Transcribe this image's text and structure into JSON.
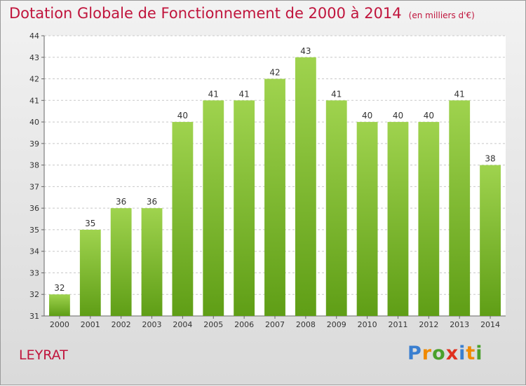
{
  "title": "Dotation Globale de Fonctionnement de 2000 à 2014",
  "unit": "(en milliers d'€)",
  "commune": "LEYRAT",
  "logo": {
    "text": "Proxiti",
    "letters": [
      {
        "ch": "P",
        "color": "#3a7fd0"
      },
      {
        "ch": "r",
        "color": "#f08a00"
      },
      {
        "ch": "o",
        "color": "#4aa02c"
      },
      {
        "ch": "x",
        "color": "#e0301e"
      },
      {
        "ch": "i",
        "color": "#3a7fd0"
      },
      {
        "ch": "t",
        "color": "#f08a00"
      },
      {
        "ch": "i",
        "color": "#4aa02c"
      }
    ]
  },
  "colors": {
    "accent": "#c0143c",
    "bar_top": "#9fd34e",
    "bar_bottom": "#5f9e16",
    "grid": "#c8c8c8",
    "axis_text": "#333333"
  },
  "chart_data": {
    "type": "bar",
    "categories": [
      "2000",
      "2001",
      "2002",
      "2003",
      "2004",
      "2005",
      "2006",
      "2007",
      "2008",
      "2009",
      "2010",
      "2011",
      "2012",
      "2013",
      "2014"
    ],
    "values": [
      32,
      35,
      36,
      36,
      40,
      41,
      41,
      42,
      43,
      41,
      40,
      40,
      40,
      41,
      38
    ],
    "ylim": [
      31,
      44
    ],
    "yticks": [
      31,
      32,
      33,
      34,
      35,
      36,
      37,
      38,
      39,
      40,
      41,
      42,
      43,
      44
    ],
    "grid": true,
    "legend": "none"
  }
}
